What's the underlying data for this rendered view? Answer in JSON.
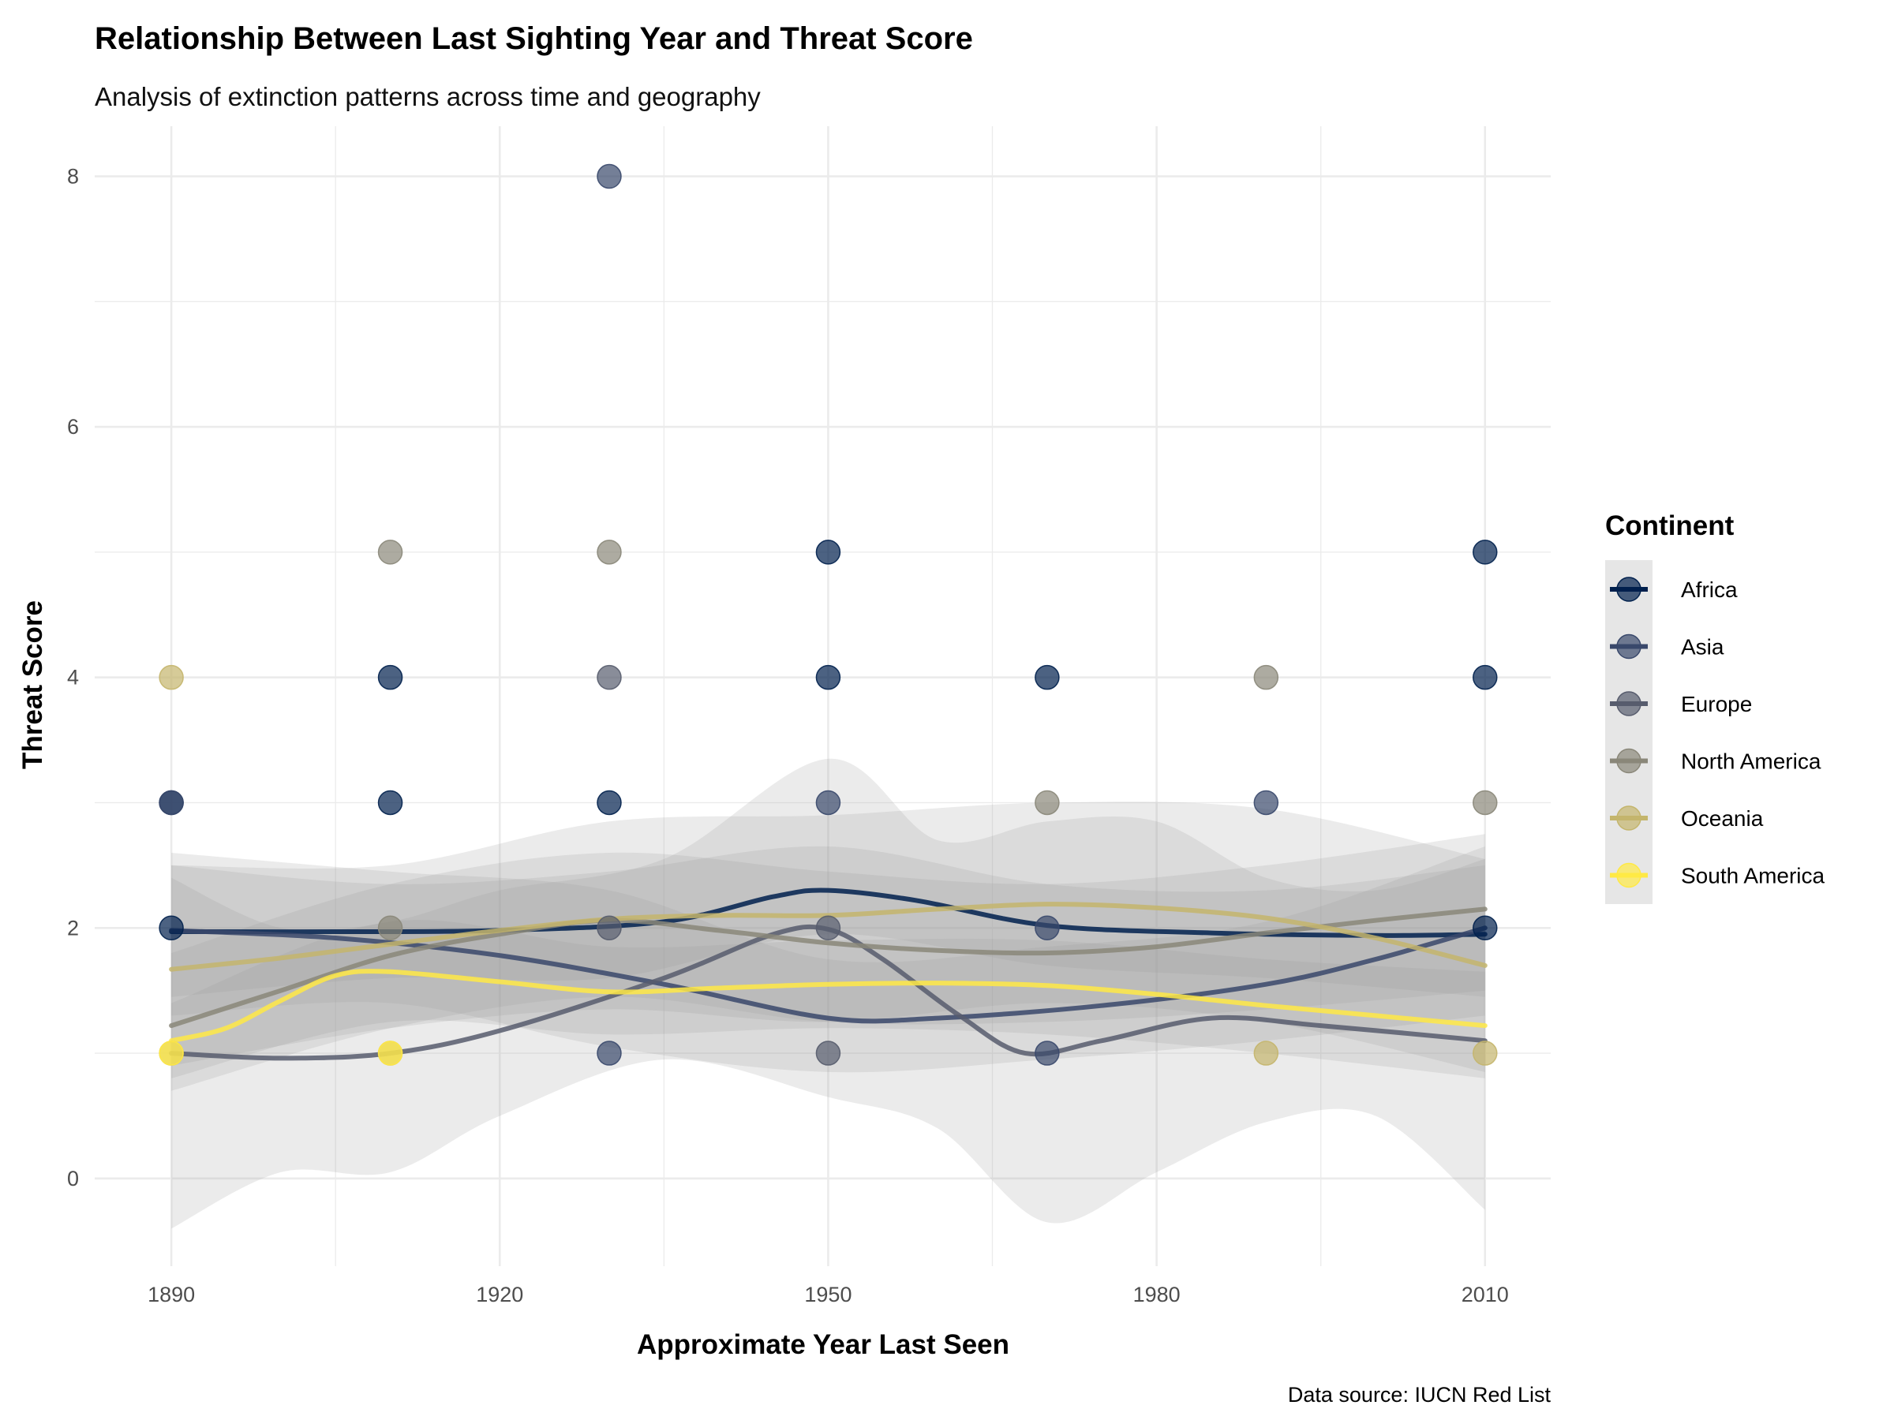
{
  "chart_data": {
    "type": "scatter",
    "title": "Relationship Between Last Sighting Year and Threat Score",
    "subtitle": "Analysis of extinction patterns across time and geography",
    "xlabel": "Approximate Year Last Seen",
    "ylabel": "Threat Score",
    "caption": "Data source: IUCN Red List",
    "legend_title": "Continent",
    "legend_position": "right",
    "grid": true,
    "xlim": [
      1883,
      2016
    ],
    "ylim": [
      -0.7,
      8.4
    ],
    "x_ticks": [
      1890,
      1920,
      1950,
      1980,
      2010
    ],
    "x_tick_labels": [
      "1890",
      "1920",
      "1950",
      "1980",
      "2010"
    ],
    "y_ticks": [
      0,
      2,
      4,
      6,
      8
    ],
    "y_tick_labels": [
      "0",
      "2",
      "4",
      "6",
      "8"
    ],
    "series": [
      {
        "name": "Africa",
        "color": "#00204d",
        "points": [
          [
            1890,
            2
          ],
          [
            1890,
            3
          ],
          [
            1910,
            3
          ],
          [
            1910,
            4
          ],
          [
            1930,
            3
          ],
          [
            1950,
            4
          ],
          [
            1950,
            5
          ],
          [
            1970,
            4
          ],
          [
            2010,
            2
          ],
          [
            2010,
            4
          ],
          [
            2010,
            5
          ]
        ],
        "smooth": [
          [
            1890,
            1.97
          ],
          [
            1905,
            1.97
          ],
          [
            1920,
            1.98
          ],
          [
            1935,
            2.05
          ],
          [
            1945,
            2.25
          ],
          [
            1950,
            2.3
          ],
          [
            1958,
            2.22
          ],
          [
            1970,
            2.02
          ],
          [
            1985,
            1.96
          ],
          [
            2000,
            1.94
          ],
          [
            2010,
            1.95
          ]
        ],
        "band": [
          [
            1890,
            1.45,
            2.5
          ],
          [
            1910,
            1.6,
            2.35
          ],
          [
            1930,
            1.6,
            2.45
          ],
          [
            1950,
            1.95,
            2.65
          ],
          [
            1970,
            1.7,
            2.35
          ],
          [
            1990,
            1.6,
            2.3
          ],
          [
            2010,
            1.45,
            2.5
          ]
        ]
      },
      {
        "name": "Asia",
        "color": "#39486b",
        "points": [
          [
            1890,
            3
          ],
          [
            1930,
            1
          ],
          [
            1930,
            8
          ],
          [
            1950,
            3
          ],
          [
            1970,
            1
          ],
          [
            1970,
            2
          ],
          [
            1990,
            3
          ]
        ],
        "smooth": [
          [
            1890,
            1.98
          ],
          [
            1905,
            1.92
          ],
          [
            1920,
            1.78
          ],
          [
            1935,
            1.55
          ],
          [
            1950,
            1.28
          ],
          [
            1960,
            1.28
          ],
          [
            1975,
            1.38
          ],
          [
            1990,
            1.55
          ],
          [
            2000,
            1.75
          ],
          [
            2010,
            2.0
          ]
        ],
        "band": [
          [
            1890,
            1.3,
            2.6
          ],
          [
            1910,
            1.4,
            2.45
          ],
          [
            1930,
            1.05,
            2.3
          ],
          [
            1950,
            0.85,
            1.75
          ],
          [
            1970,
            0.95,
            1.85
          ],
          [
            1990,
            1.1,
            2.05
          ],
          [
            2010,
            1.3,
            2.65
          ]
        ]
      },
      {
        "name": "Europe",
        "color": "#575c6d",
        "points": [
          [
            1930,
            2
          ],
          [
            1930,
            4
          ],
          [
            1950,
            1
          ],
          [
            1950,
            2
          ]
        ],
        "smooth": [
          [
            1890,
            1.0
          ],
          [
            1900,
            0.96
          ],
          [
            1910,
            1.0
          ],
          [
            1920,
            1.18
          ],
          [
            1935,
            1.6
          ],
          [
            1945,
            1.95
          ],
          [
            1950,
            1.99
          ],
          [
            1955,
            1.75
          ],
          [
            1962,
            1.3
          ],
          [
            1968,
            1.0
          ],
          [
            1975,
            1.1
          ],
          [
            1985,
            1.28
          ],
          [
            1995,
            1.22
          ],
          [
            2010,
            1.1
          ]
        ],
        "band": [
          [
            1890,
            -0.4,
            2.4
          ],
          [
            1900,
            0.05,
            2.0
          ],
          [
            1910,
            0.05,
            2.05
          ],
          [
            1920,
            0.5,
            2.3
          ],
          [
            1935,
            0.95,
            2.55
          ],
          [
            1950,
            0.65,
            3.35
          ],
          [
            1960,
            0.4,
            2.7
          ],
          [
            1970,
            -0.35,
            2.85
          ],
          [
            1980,
            0.05,
            2.85
          ],
          [
            1990,
            0.45,
            2.4
          ],
          [
            2000,
            0.5,
            2.3
          ],
          [
            2010,
            -0.25,
            2.55
          ]
        ]
      },
      {
        "name": "North America",
        "color": "#8a8779",
        "points": [
          [
            1910,
            2
          ],
          [
            1910,
            5
          ],
          [
            1930,
            5
          ],
          [
            1970,
            3
          ],
          [
            1990,
            4
          ],
          [
            2010,
            3
          ]
        ],
        "smooth": [
          [
            1890,
            1.22
          ],
          [
            1900,
            1.5
          ],
          [
            1910,
            1.78
          ],
          [
            1920,
            1.95
          ],
          [
            1930,
            2.06
          ],
          [
            1940,
            1.98
          ],
          [
            1950,
            1.88
          ],
          [
            1960,
            1.82
          ],
          [
            1970,
            1.8
          ],
          [
            1980,
            1.85
          ],
          [
            1990,
            1.96
          ],
          [
            2000,
            2.06
          ],
          [
            2010,
            2.15
          ]
        ],
        "band": [
          [
            1890,
            0.7,
            1.8
          ],
          [
            1910,
            1.2,
            2.35
          ],
          [
            1930,
            1.45,
            2.6
          ],
          [
            1950,
            1.25,
            2.45
          ],
          [
            1970,
            1.25,
            2.35
          ],
          [
            1990,
            1.35,
            2.5
          ],
          [
            2010,
            1.5,
            2.75
          ]
        ]
      },
      {
        "name": "Oceania",
        "color": "#c4b56c",
        "points": [
          [
            1890,
            1
          ],
          [
            1890,
            4
          ],
          [
            1910,
            1
          ],
          [
            1990,
            1
          ],
          [
            2010,
            1
          ]
        ],
        "smooth": [
          [
            1890,
            1.67
          ],
          [
            1900,
            1.76
          ],
          [
            1910,
            1.87
          ],
          [
            1920,
            1.98
          ],
          [
            1930,
            2.07
          ],
          [
            1940,
            2.1
          ],
          [
            1950,
            2.1
          ],
          [
            1960,
            2.15
          ],
          [
            1970,
            2.19
          ],
          [
            1980,
            2.16
          ],
          [
            1990,
            2.08
          ],
          [
            2000,
            1.92
          ],
          [
            2010,
            1.7
          ]
        ],
        "band": [
          [
            1890,
            0.9,
            2.5
          ],
          [
            1910,
            1.2,
            2.5
          ],
          [
            1930,
            1.35,
            2.85
          ],
          [
            1950,
            1.25,
            2.9
          ],
          [
            1970,
            1.4,
            3.0
          ],
          [
            1990,
            1.25,
            2.95
          ],
          [
            2010,
            0.85,
            2.55
          ]
        ]
      },
      {
        "name": "South America",
        "color": "#ffe945",
        "points": [
          [
            1890,
            1
          ],
          [
            1910,
            1
          ]
        ],
        "smooth": [
          [
            1890,
            1.1
          ],
          [
            1895,
            1.2
          ],
          [
            1900,
            1.42
          ],
          [
            1905,
            1.62
          ],
          [
            1910,
            1.65
          ],
          [
            1920,
            1.57
          ],
          [
            1930,
            1.49
          ],
          [
            1940,
            1.52
          ],
          [
            1950,
            1.55
          ],
          [
            1960,
            1.56
          ],
          [
            1970,
            1.54
          ],
          [
            1980,
            1.47
          ],
          [
            1990,
            1.38
          ],
          [
            2000,
            1.3
          ],
          [
            2010,
            1.22
          ]
        ],
        "band": [
          [
            1890,
            0.8,
            1.4
          ],
          [
            1910,
            1.25,
            2.05
          ],
          [
            1930,
            1.15,
            1.85
          ],
          [
            1950,
            1.2,
            1.9
          ],
          [
            1970,
            1.15,
            1.9
          ],
          [
            1990,
            1.0,
            1.75
          ],
          [
            2010,
            0.8,
            1.65
          ]
        ]
      }
    ]
  }
}
